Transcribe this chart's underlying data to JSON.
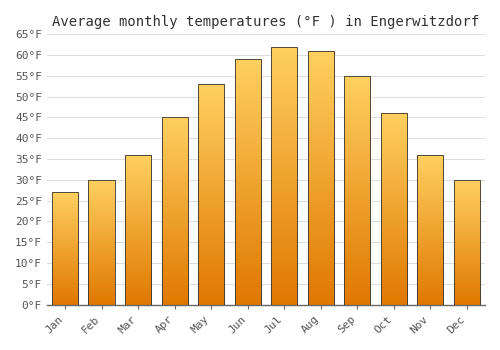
{
  "title": "Average monthly temperatures (°F ) in Engerwitzdorf",
  "months": [
    "Jan",
    "Feb",
    "Mar",
    "Apr",
    "May",
    "Jun",
    "Jul",
    "Aug",
    "Sep",
    "Oct",
    "Nov",
    "Dec"
  ],
  "values": [
    27,
    30,
    36,
    45,
    53,
    59,
    62,
    61,
    55,
    46,
    36,
    30
  ],
  "bar_color_bottom": "#E07800",
  "bar_color_top": "#FFD060",
  "bar_edge_color": "#333333",
  "ylim": [
    0,
    65
  ],
  "yticks": [
    0,
    5,
    10,
    15,
    20,
    25,
    30,
    35,
    40,
    45,
    50,
    55,
    60,
    65
  ],
  "ytick_labels": [
    "0°F",
    "5°F",
    "10°F",
    "15°F",
    "20°F",
    "25°F",
    "30°F",
    "35°F",
    "40°F",
    "45°F",
    "50°F",
    "55°F",
    "60°F",
    "65°F"
  ],
  "bg_color": "#FFFFFF",
  "grid_color": "#DDDDDD",
  "title_fontsize": 10,
  "tick_fontsize": 8,
  "bar_width": 0.72
}
